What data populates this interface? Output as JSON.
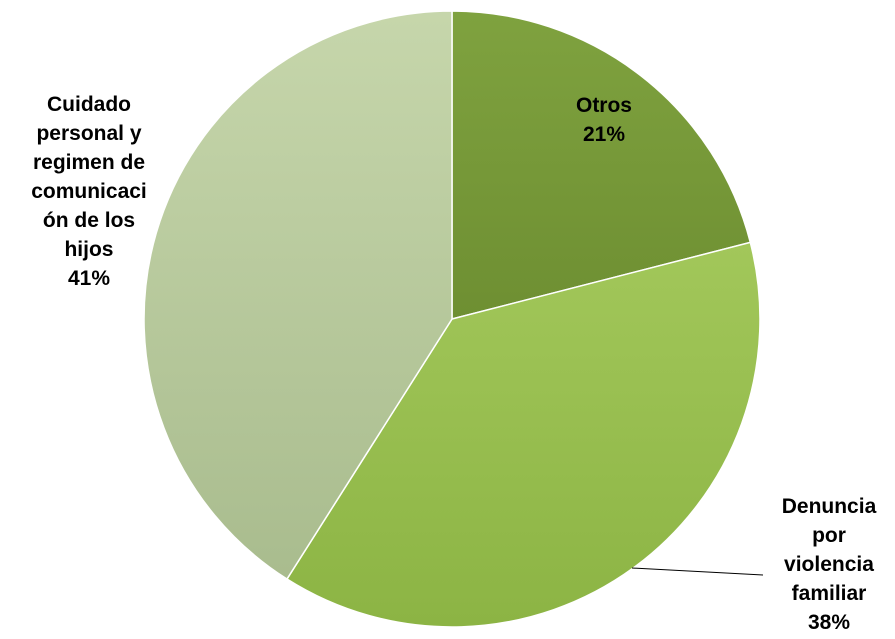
{
  "chart_data": {
    "type": "pie",
    "slices": [
      {
        "label": [
          "Otros"
        ],
        "value": 21,
        "value_label": "21%",
        "color": "#6e8f32",
        "color_light": "#7fa23f"
      },
      {
        "label": [
          "Denuncia",
          "por",
          "violencia",
          "familiar"
        ],
        "value": 38,
        "value_label": "38%",
        "color": "#8cb444",
        "color_light": "#a2c75a"
      },
      {
        "label": [
          "Cuidado",
          "personal y",
          "regimen de",
          "comunicaci",
          "ón de los",
          "hijos"
        ],
        "value": 41,
        "value_label": "41%",
        "color": "#a9bc8e",
        "color_light": "#c6d6ab"
      }
    ],
    "legend": "none",
    "start_angle": "12 o'clock",
    "direction": "clockwise"
  }
}
